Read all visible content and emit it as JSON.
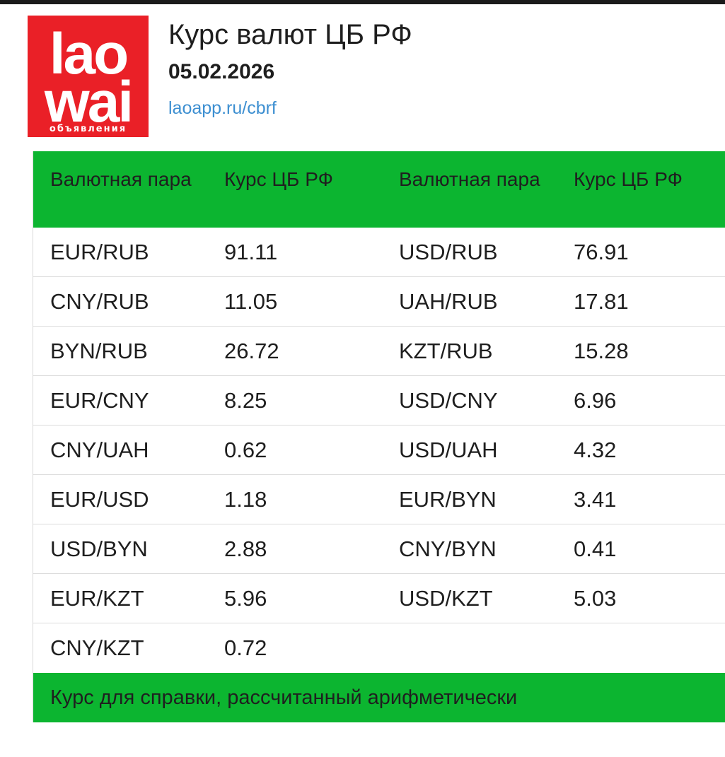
{
  "logo": {
    "line1": "lao",
    "line2": "wai",
    "sub": "объявления"
  },
  "header": {
    "title": "Курс валют ЦБ РФ",
    "date": "05.02.2026",
    "link": "laoapp.ru/cbrf"
  },
  "table": {
    "columns": [
      "Валютная пара",
      "Курс ЦБ РФ",
      "Валютная пара",
      "Курс ЦБ РФ"
    ],
    "rows": [
      [
        "EUR/RUB",
        "91.11",
        "USD/RUB",
        "76.91"
      ],
      [
        "CNY/RUB",
        "11.05",
        "UAH/RUB",
        "17.81"
      ],
      [
        "BYN/RUB",
        "26.72",
        "KZT/RUB",
        "15.28"
      ],
      [
        "EUR/CNY",
        "8.25",
        "USD/CNY",
        "6.96"
      ],
      [
        "CNY/UAH",
        "0.62",
        "USD/UAH",
        "4.32"
      ],
      [
        "EUR/USD",
        "1.18",
        "EUR/BYN",
        "3.41"
      ],
      [
        "USD/BYN",
        "2.88",
        "CNY/BYN",
        "0.41"
      ],
      [
        "EUR/KZT",
        "5.96",
        "USD/KZT",
        "5.03"
      ],
      [
        "CNY/KZT",
        "0.72",
        "",
        ""
      ]
    ],
    "footer": "Курс для справки, рассчитанный арифметически"
  },
  "colors": {
    "accent": "#0cb530",
    "logo": "#ea2027",
    "link": "#3d8fd1"
  }
}
